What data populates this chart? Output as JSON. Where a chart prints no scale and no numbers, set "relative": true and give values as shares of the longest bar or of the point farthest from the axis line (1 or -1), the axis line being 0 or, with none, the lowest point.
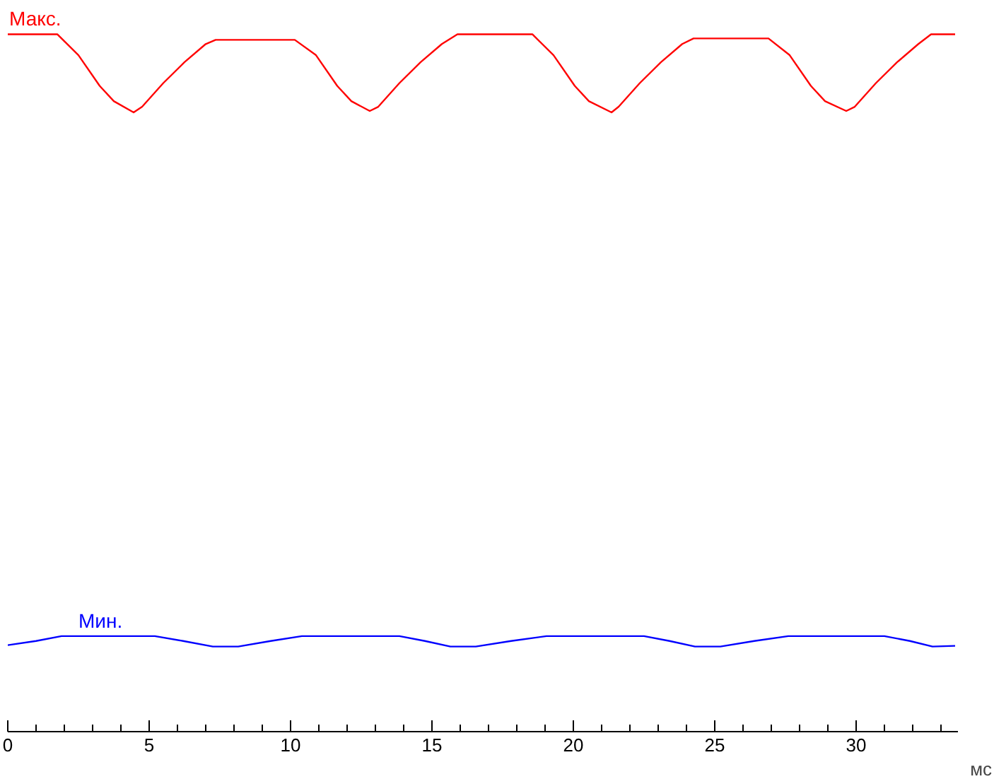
{
  "chart_data": {
    "type": "line",
    "relative": true,
    "xlabel": "мс",
    "grid": false,
    "marker": "none",
    "line_style": "solid",
    "xlim": [
      0,
      33.6
    ],
    "xticks": [
      0,
      {
        "value": 1,
        "label": null
      },
      {
        "value": 2,
        "label": null
      },
      {
        "value": 3,
        "label": null
      },
      {
        "value": 4,
        "label": null
      },
      5,
      {
        "value": 6,
        "label": null
      },
      {
        "value": 7,
        "label": null
      },
      {
        "value": 8,
        "label": null
      },
      {
        "value": 9,
        "label": null
      },
      10,
      {
        "value": 11,
        "label": null
      },
      {
        "value": 12,
        "label": null
      },
      {
        "value": 13,
        "label": null
      },
      {
        "value": 14,
        "label": null
      },
      15,
      {
        "value": 16,
        "label": null
      },
      {
        "value": 17,
        "label": null
      },
      {
        "value": 18,
        "label": null
      },
      {
        "value": 19,
        "label": null
      },
      20,
      {
        "value": 21,
        "label": null
      },
      {
        "value": 22,
        "label": null
      },
      {
        "value": 23,
        "label": null
      },
      {
        "value": 24,
        "label": null
      },
      25,
      {
        "value": 26,
        "label": null
      },
      {
        "value": 27,
        "label": null
      },
      {
        "value": 28,
        "label": null
      },
      {
        "value": 29,
        "label": null
      },
      30,
      {
        "value": 31,
        "label": null
      },
      {
        "value": 32,
        "label": null
      },
      {
        "value": 33,
        "label": null
      }
    ],
    "series": [
      {
        "name": "Макс.",
        "color": "#ff0000",
        "x": [
          0,
          1.75,
          2.5,
          3.25,
          3.75,
          4.45,
          4.75,
          5.5,
          6.25,
          7.0,
          7.35,
          10.15,
          10.9,
          11.65,
          12.15,
          12.8,
          13.1,
          13.85,
          14.6,
          15.35,
          15.9,
          18.55,
          19.3,
          20.05,
          20.55,
          21.35,
          21.6,
          22.35,
          23.1,
          23.85,
          24.25,
          26.9,
          27.65,
          28.4,
          28.9,
          29.65,
          29.95,
          30.7,
          31.45,
          32.2,
          32.65,
          33.5
        ],
        "values": [
          1.0,
          1.0,
          0.97,
          0.926,
          0.904,
          0.888,
          0.896,
          0.93,
          0.96,
          0.986,
          0.992,
          0.992,
          0.97,
          0.926,
          0.904,
          0.89,
          0.896,
          0.93,
          0.96,
          0.986,
          1.0,
          1.0,
          0.97,
          0.926,
          0.904,
          0.888,
          0.896,
          0.93,
          0.96,
          0.986,
          0.994,
          0.994,
          0.97,
          0.926,
          0.904,
          0.89,
          0.896,
          0.93,
          0.96,
          0.986,
          1.0,
          1.0
        ]
      },
      {
        "name": "Мин.",
        "color": "#0000ff",
        "x": [
          0,
          1.0,
          1.9,
          5.2,
          6.2,
          7.25,
          8.15,
          9.3,
          10.4,
          13.85,
          14.75,
          15.65,
          16.55,
          17.8,
          19.05,
          22.5,
          23.4,
          24.3,
          25.2,
          26.4,
          27.6,
          31.0,
          31.9,
          32.7,
          33.5
        ],
        "values": [
          0.124,
          0.13,
          0.137,
          0.137,
          0.13,
          0.122,
          0.122,
          0.13,
          0.137,
          0.137,
          0.13,
          0.122,
          0.122,
          0.13,
          0.137,
          0.137,
          0.13,
          0.122,
          0.122,
          0.13,
          0.137,
          0.137,
          0.13,
          0.122,
          0.123
        ]
      }
    ]
  }
}
